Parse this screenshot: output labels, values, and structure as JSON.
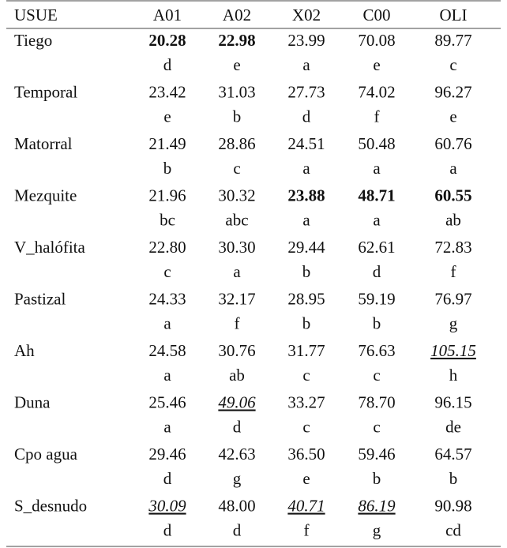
{
  "table": {
    "header": [
      "USUE",
      "A01",
      "A02",
      "X02",
      "C00",
      "OLI"
    ],
    "rows": [
      {
        "label": "Tiego",
        "values": [
          {
            "text": "20.28",
            "style": "bold"
          },
          {
            "text": "22.98",
            "style": "bold"
          },
          "23.99",
          "70.08",
          "89.77"
        ],
        "letters": [
          "d",
          "e",
          "a",
          "e",
          "c"
        ]
      },
      {
        "label": "Temporal",
        "values": [
          "23.42",
          "31.03",
          "27.73",
          "74.02",
          "96.27"
        ],
        "letters": [
          "e",
          "b",
          "d",
          "f",
          "e"
        ]
      },
      {
        "label": "Matorral",
        "values": [
          "21.49",
          "28.86",
          "24.51",
          "50.48",
          "60.76"
        ],
        "letters": [
          "b",
          "c",
          "a",
          "a",
          "a"
        ]
      },
      {
        "label": "Mezquite",
        "values": [
          "21.96",
          "30.32",
          {
            "text": "23.88",
            "style": "bold"
          },
          {
            "text": "48.71",
            "style": "bold"
          },
          {
            "text": "60.55",
            "style": "bold"
          }
        ],
        "letters": [
          "bc",
          "abc",
          "a",
          "a",
          "ab"
        ]
      },
      {
        "label": "V_halófita",
        "values": [
          "22.80",
          "30.30",
          "29.44",
          "62.61",
          "72.83"
        ],
        "letters": [
          "c",
          "a",
          "b",
          "d",
          "f"
        ]
      },
      {
        "label": "Pastizal",
        "values": [
          "24.33",
          "32.17",
          "28.95",
          "59.19",
          "76.97"
        ],
        "letters": [
          "a",
          "f",
          "b",
          "b",
          "g"
        ]
      },
      {
        "label": "Ah",
        "values": [
          "24.58",
          "30.76",
          "31.77",
          "76.63",
          {
            "text": "105.15",
            "style": "underline-italic"
          }
        ],
        "letters": [
          "a",
          "ab",
          "c",
          "c",
          "h"
        ]
      },
      {
        "label": "Duna",
        "values": [
          "25.46",
          {
            "text": "49.06",
            "style": "underline-italic"
          },
          "33.27",
          "78.70",
          "96.15"
        ],
        "letters": [
          "a",
          "d",
          "c",
          "c",
          "de"
        ]
      },
      {
        "label": "Cpo agua",
        "values": [
          "29.46",
          "42.63",
          "36.50",
          "59.46",
          "64.57"
        ],
        "letters": [
          "d",
          "g",
          "e",
          "b",
          "b"
        ]
      },
      {
        "label": "S_desnudo",
        "values": [
          {
            "text": "30.09",
            "style": "underline-italic"
          },
          "48.00",
          {
            "text": "40.71",
            "style": "underline-italic"
          },
          {
            "text": "86.19",
            "style": "underline-italic"
          },
          "90.98"
        ],
        "letters": [
          "d",
          "d",
          "f",
          "g",
          "cd"
        ]
      }
    ]
  }
}
